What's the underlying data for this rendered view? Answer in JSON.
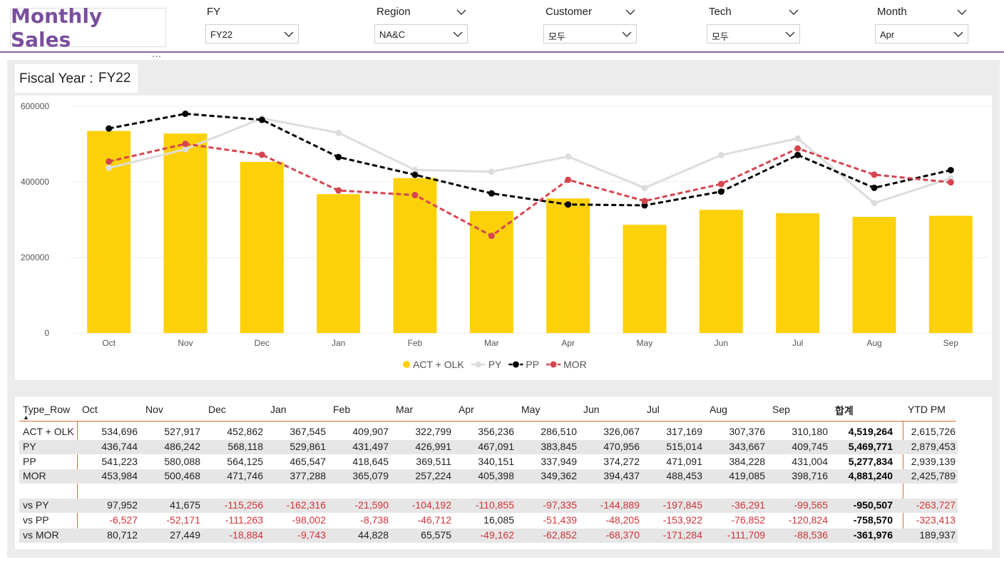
{
  "header": {
    "title": "Monthly Sales",
    "more_glyph": "…"
  },
  "slicers": [
    {
      "label": "FY",
      "value": "FY22"
    },
    {
      "label": "Region",
      "value": "NA&C"
    },
    {
      "label": "Customer",
      "value": "모두"
    },
    {
      "label": "Tech",
      "value": "모두"
    },
    {
      "label": "Month",
      "value": "Apr"
    }
  ],
  "fiscal_card": {
    "label": "Fiscal Year :",
    "value": "FY22"
  },
  "colors": {
    "accent": "#8c62a6",
    "bar": "#fdd10a",
    "py": "#dddddd",
    "pp": "#000000",
    "mor": "#d64550",
    "negative": "#d13438"
  },
  "chart_data": {
    "type": "bar",
    "categories": [
      "Oct",
      "Nov",
      "Dec",
      "Jan",
      "Feb",
      "Mar",
      "Apr",
      "May",
      "Jun",
      "Jul",
      "Aug",
      "Sep"
    ],
    "y_ticks": [
      "600000",
      "400000",
      "200000",
      "0"
    ],
    "ylim": [
      0,
      600000
    ],
    "grid": true,
    "legend_position": "bottom",
    "series": [
      {
        "name": "ACT + OLK",
        "kind": "bar",
        "values": [
          534696,
          527917,
          452862,
          367545,
          409907,
          322799,
          356236,
          286510,
          326067,
          317169,
          307376,
          310180
        ]
      },
      {
        "name": "PY",
        "kind": "line",
        "values": [
          436744,
          486242,
          568118,
          529861,
          431497,
          426991,
          467091,
          383845,
          470956,
          515014,
          343667,
          409745
        ]
      },
      {
        "name": "PP",
        "kind": "line",
        "values": [
          541223,
          580088,
          564125,
          465547,
          418645,
          369511,
          340151,
          337949,
          374272,
          471091,
          384228,
          431004
        ]
      },
      {
        "name": "MOR",
        "kind": "line",
        "values": [
          453984,
          500468,
          471746,
          377288,
          365079,
          257224,
          405398,
          349362,
          394437,
          488453,
          419085,
          398716
        ]
      }
    ]
  },
  "table": {
    "header_first": "Type_Row",
    "columns": [
      "Oct",
      "Nov",
      "Dec",
      "Jan",
      "Feb",
      "Mar",
      "Apr",
      "May",
      "Jun",
      "Jul",
      "Aug",
      "Sep"
    ],
    "total_header": "합계",
    "ytd_header": "YTD PM",
    "rows": [
      {
        "label": "ACT + OLK",
        "shaded": false,
        "values": [
          "534,696",
          "527,917",
          "452,862",
          "367,545",
          "409,907",
          "322,799",
          "356,236",
          "286,510",
          "326,067",
          "317,169",
          "307,376",
          "310,180"
        ],
        "total": "4,519,264",
        "ytd": "2,615,726"
      },
      {
        "label": "PY",
        "shaded": true,
        "values": [
          "436,744",
          "486,242",
          "568,118",
          "529,861",
          "431,497",
          "426,991",
          "467,091",
          "383,845",
          "470,956",
          "515,014",
          "343,667",
          "409,745"
        ],
        "total": "5,469,771",
        "ytd": "2,879,453"
      },
      {
        "label": "PP",
        "shaded": false,
        "values": [
          "541,223",
          "580,088",
          "564,125",
          "465,547",
          "418,645",
          "369,511",
          "340,151",
          "337,949",
          "374,272",
          "471,091",
          "384,228",
          "431,004"
        ],
        "total": "5,277,834",
        "ytd": "2,939,139"
      },
      {
        "label": "MOR",
        "shaded": true,
        "values": [
          "453,984",
          "500,468",
          "471,746",
          "377,288",
          "365,079",
          "257,224",
          "405,398",
          "349,362",
          "394,437",
          "488,453",
          "419,085",
          "398,716"
        ],
        "total": "4,881,240",
        "ytd": "2,425,789"
      },
      {
        "label": "vs PY",
        "shaded": true,
        "values": [
          "97,952",
          "41,675",
          "-115,256",
          "-162,316",
          "-21,590",
          "-104,192",
          "-110,855",
          "-97,335",
          "-144,889",
          "-197,845",
          "-36,291",
          "-99,565"
        ],
        "total": "-950,507",
        "ytd": "-263,727"
      },
      {
        "label": "vs PP",
        "shaded": false,
        "values": [
          "-6,527",
          "-52,171",
          "-111,263",
          "-98,002",
          "-8,738",
          "-46,712",
          "16,085",
          "-51,439",
          "-48,205",
          "-153,922",
          "-76,852",
          "-120,824"
        ],
        "total": "-758,570",
        "ytd": "-323,413"
      },
      {
        "label": "vs MOR",
        "shaded": true,
        "values": [
          "80,712",
          "27,449",
          "-18,884",
          "-9,743",
          "44,828",
          "65,575",
          "-49,162",
          "-62,852",
          "-68,370",
          "-171,284",
          "-111,709",
          "-88,536"
        ],
        "total": "-361,976",
        "ytd": "189,937"
      }
    ]
  }
}
